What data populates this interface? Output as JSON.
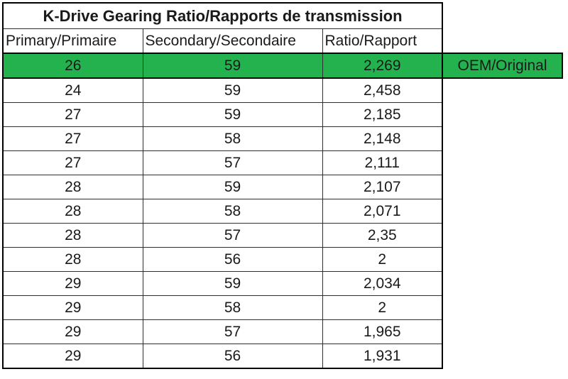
{
  "table": {
    "title": "K-Drive Gearing Ratio/Rapports de transmission",
    "columns": [
      "Primary/Primaire",
      "Secondary/Secondaire",
      "Ratio/Rapport"
    ],
    "oem_label": "OEM/Original",
    "rows": [
      {
        "primary": "26",
        "secondary": "59",
        "ratio": "2,269",
        "highlight": true
      },
      {
        "primary": "24",
        "secondary": "59",
        "ratio": "2,458",
        "highlight": false
      },
      {
        "primary": "27",
        "secondary": "59",
        "ratio": "2,185",
        "highlight": false
      },
      {
        "primary": "27",
        "secondary": "58",
        "ratio": "2,148",
        "highlight": false
      },
      {
        "primary": "27",
        "secondary": "57",
        "ratio": "2,111",
        "highlight": false
      },
      {
        "primary": "28",
        "secondary": "59",
        "ratio": "2,107",
        "highlight": false
      },
      {
        "primary": "28",
        "secondary": "58",
        "ratio": "2,071",
        "highlight": false
      },
      {
        "primary": "28",
        "secondary": "57",
        "ratio": "2,35",
        "highlight": false
      },
      {
        "primary": "28",
        "secondary": "56",
        "ratio": "2",
        "highlight": false
      },
      {
        "primary": "29",
        "secondary": "59",
        "ratio": "2,034",
        "highlight": false
      },
      {
        "primary": "29",
        "secondary": "58",
        "ratio": "2",
        "highlight": false
      },
      {
        "primary": "29",
        "secondary": "57",
        "ratio": "1,965",
        "highlight": false
      },
      {
        "primary": "29",
        "secondary": "56",
        "ratio": "1,931",
        "highlight": false
      }
    ],
    "colors": {
      "highlight_green": "#24b24f",
      "border": "#000000",
      "text": "#1a1a1a",
      "background": "#ffffff"
    }
  },
  "chart_data": {
    "type": "table",
    "title": "K-Drive Gearing Ratio/Rapports de transmission",
    "columns": [
      "Primary/Primaire",
      "Secondary/Secondaire",
      "Ratio/Rapport"
    ],
    "decimal_separator": ",",
    "rows": [
      [
        "26",
        "59",
        "2,269"
      ],
      [
        "24",
        "59",
        "2,458"
      ],
      [
        "27",
        "59",
        "2,185"
      ],
      [
        "27",
        "58",
        "2,148"
      ],
      [
        "27",
        "57",
        "2,111"
      ],
      [
        "28",
        "59",
        "2,107"
      ],
      [
        "28",
        "58",
        "2,071"
      ],
      [
        "28",
        "57",
        "2,35"
      ],
      [
        "28",
        "56",
        "2"
      ],
      [
        "29",
        "59",
        "2,034"
      ],
      [
        "29",
        "58",
        "2"
      ],
      [
        "29",
        "57",
        "1,965"
      ],
      [
        "29",
        "56",
        "1,931"
      ]
    ],
    "highlighted_row": {
      "index": 0,
      "annotation": "OEM/Original",
      "color": "#24b24f"
    },
    "layout": {
      "grid": "full black borders",
      "title_position": "top merged cell, bold, centered"
    }
  }
}
